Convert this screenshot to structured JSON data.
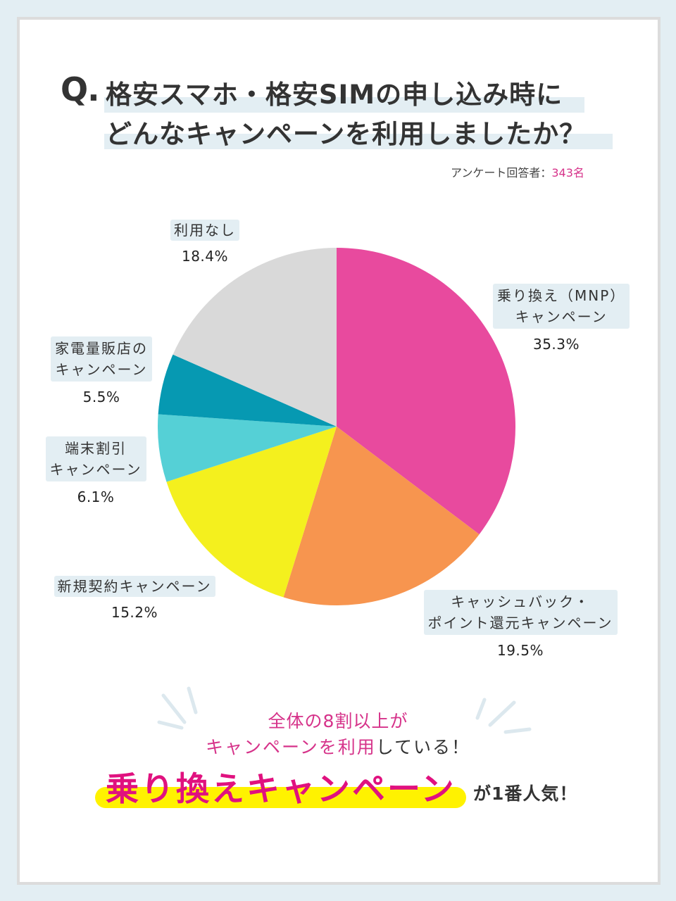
{
  "header": {
    "q_mark": "Q.",
    "title_line1": "格安スマホ・格安SIMの申し込み時に",
    "title_line2": "どんなキャンペーンを利用しましたか？",
    "respondents_label": "アンケート回答者：",
    "respondents_count": "343名"
  },
  "colors": {
    "pink": "#e84a9e",
    "orange": "#f7954f",
    "yellow": "#f4f01e",
    "light_cyan": "#55d0d6",
    "teal": "#0699b2",
    "gray": "#d9d9d9",
    "accent_pink": "#d6338a",
    "highlight_yellow": "#fff200",
    "label_bg": "#e3eef3"
  },
  "chart_data": {
    "type": "pie",
    "title": "格安スマホ・格安SIMの申し込み時にどんなキャンペーンを利用しましたか？",
    "total_respondents": 343,
    "start_angle": "12 o'clock",
    "direction": "clockwise",
    "categories": [
      "乗り換え（MNP）キャンペーン",
      "キャッシュバック・ポイント還元キャンペーン",
      "新規契約キャンペーン",
      "端末割引キャンペーン",
      "家電量販店のキャンペーン",
      "利用なし"
    ],
    "values": [
      35.3,
      19.5,
      15.2,
      6.1,
      5.5,
      18.4
    ],
    "unit": "%",
    "colors": [
      "#e84a9e",
      "#f7954f",
      "#f4f01e",
      "#55d0d6",
      "#0699b2",
      "#d9d9d9"
    ],
    "legend": "labels placed next to slices"
  },
  "labels": [
    {
      "line1": "乗り換え（MNP）",
      "line2": "キャンペーン",
      "pct": "35.3%"
    },
    {
      "line1": "キャッシュバック・",
      "line2": "ポイント還元キャンペーン",
      "pct": "19.5%"
    },
    {
      "line1": "新規契約キャンペーン",
      "pct": "15.2%"
    },
    {
      "line1": "端末割引",
      "line2": "キャンペーン",
      "pct": "6.1%"
    },
    {
      "line1": "家電量販店の",
      "line2": "キャンペーン",
      "pct": "5.5%"
    },
    {
      "line1": "利用なし",
      "pct": "18.4%"
    }
  ],
  "summary": {
    "line1": "全体の8割以上が",
    "line2_pink": "キャンペーンを利用",
    "line2_dark": "している！",
    "hero": "乗り換えキャンペーン",
    "hero_suffix": "が1番人気！"
  }
}
